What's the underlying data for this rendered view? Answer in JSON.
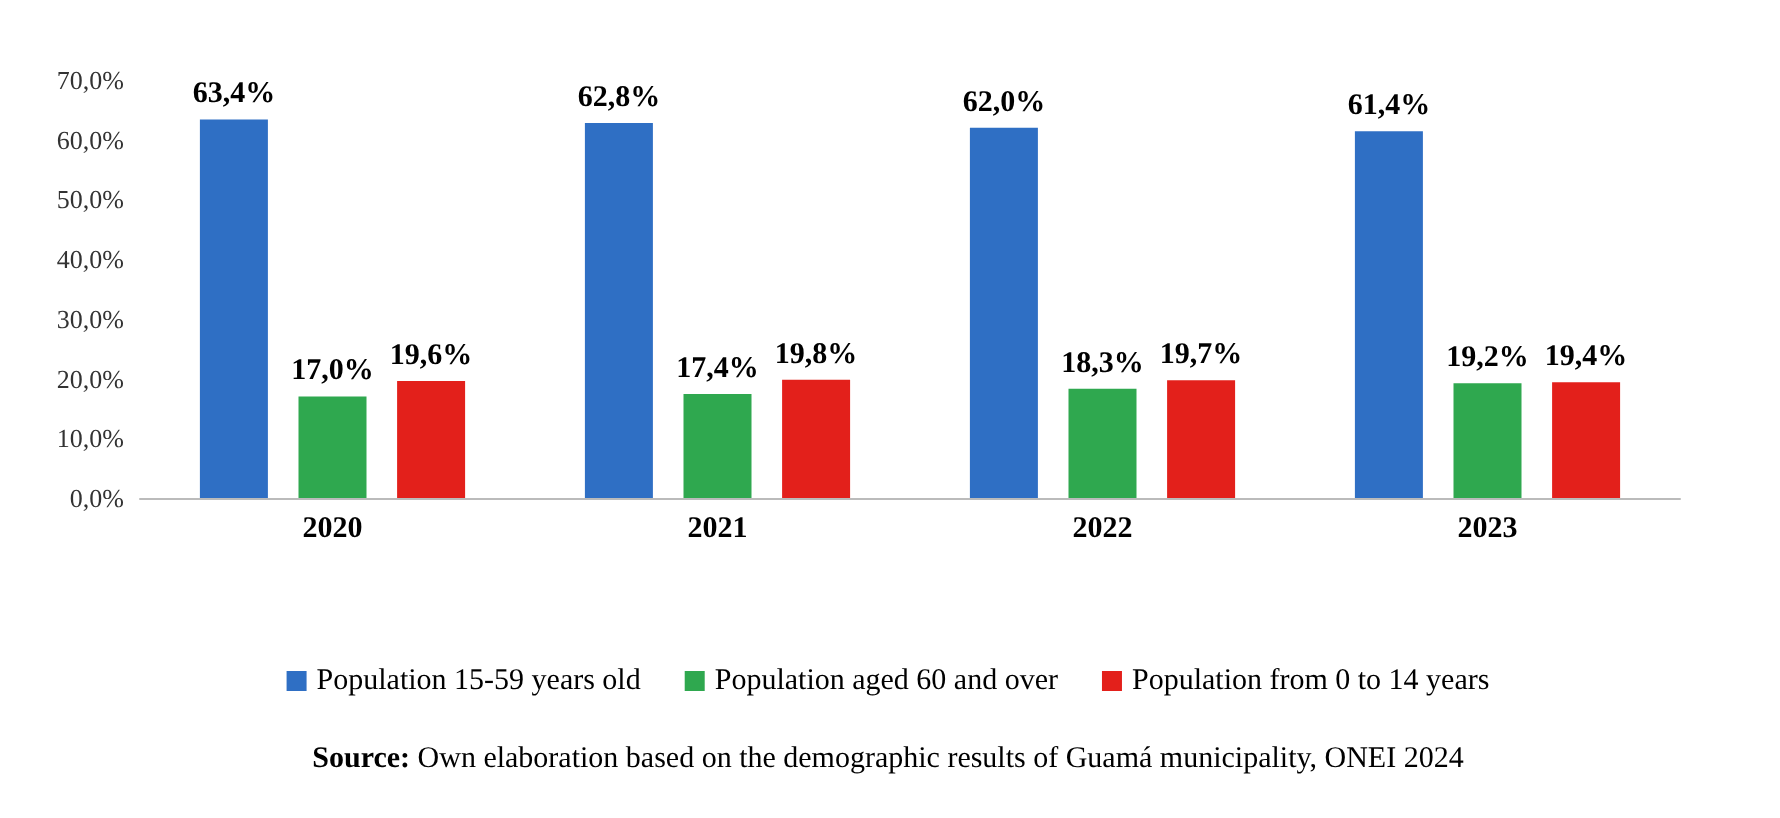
{
  "chart_data": {
    "type": "bar",
    "categories": [
      "2020",
      "2021",
      "2022",
      "2023"
    ],
    "series": [
      {
        "name": "Population 15-59 years old",
        "color": "#2f6fc4",
        "values": [
          63.4,
          62.8,
          62.0,
          61.4
        ],
        "value_labels": [
          "63,4%",
          "62,8%",
          "62,0%",
          "61,4%"
        ]
      },
      {
        "name": "Population aged 60 and over",
        "color": "#2fa84f",
        "values": [
          17.0,
          17.4,
          18.3,
          19.2
        ],
        "value_labels": [
          "17,0%",
          "17,4%",
          "18,3%",
          "19,2%"
        ]
      },
      {
        "name": "Population from 0 to 14 years",
        "color": "#e3201b",
        "values": [
          19.6,
          19.8,
          19.7,
          19.4
        ],
        "value_labels": [
          "19,6%",
          "19,8%",
          "19,7%",
          "19,4%"
        ]
      }
    ],
    "ylim": [
      0,
      70
    ],
    "yticks": [
      {
        "value": 0,
        "label": "0,0%"
      },
      {
        "value": 10,
        "label": "10,0%"
      },
      {
        "value": 20,
        "label": "20,0%"
      },
      {
        "value": 30,
        "label": "30,0%"
      },
      {
        "value": 40,
        "label": "40,0%"
      },
      {
        "value": 50,
        "label": "50,0%"
      },
      {
        "value": 60,
        "label": "60,0%"
      },
      {
        "value": 70,
        "label": "70,0%"
      }
    ],
    "grid": false,
    "legend": "bottom",
    "annotations": [
      "Source: Own elaboration based on the demographic results of Guamá municipality, ONEI 2024"
    ]
  }
}
